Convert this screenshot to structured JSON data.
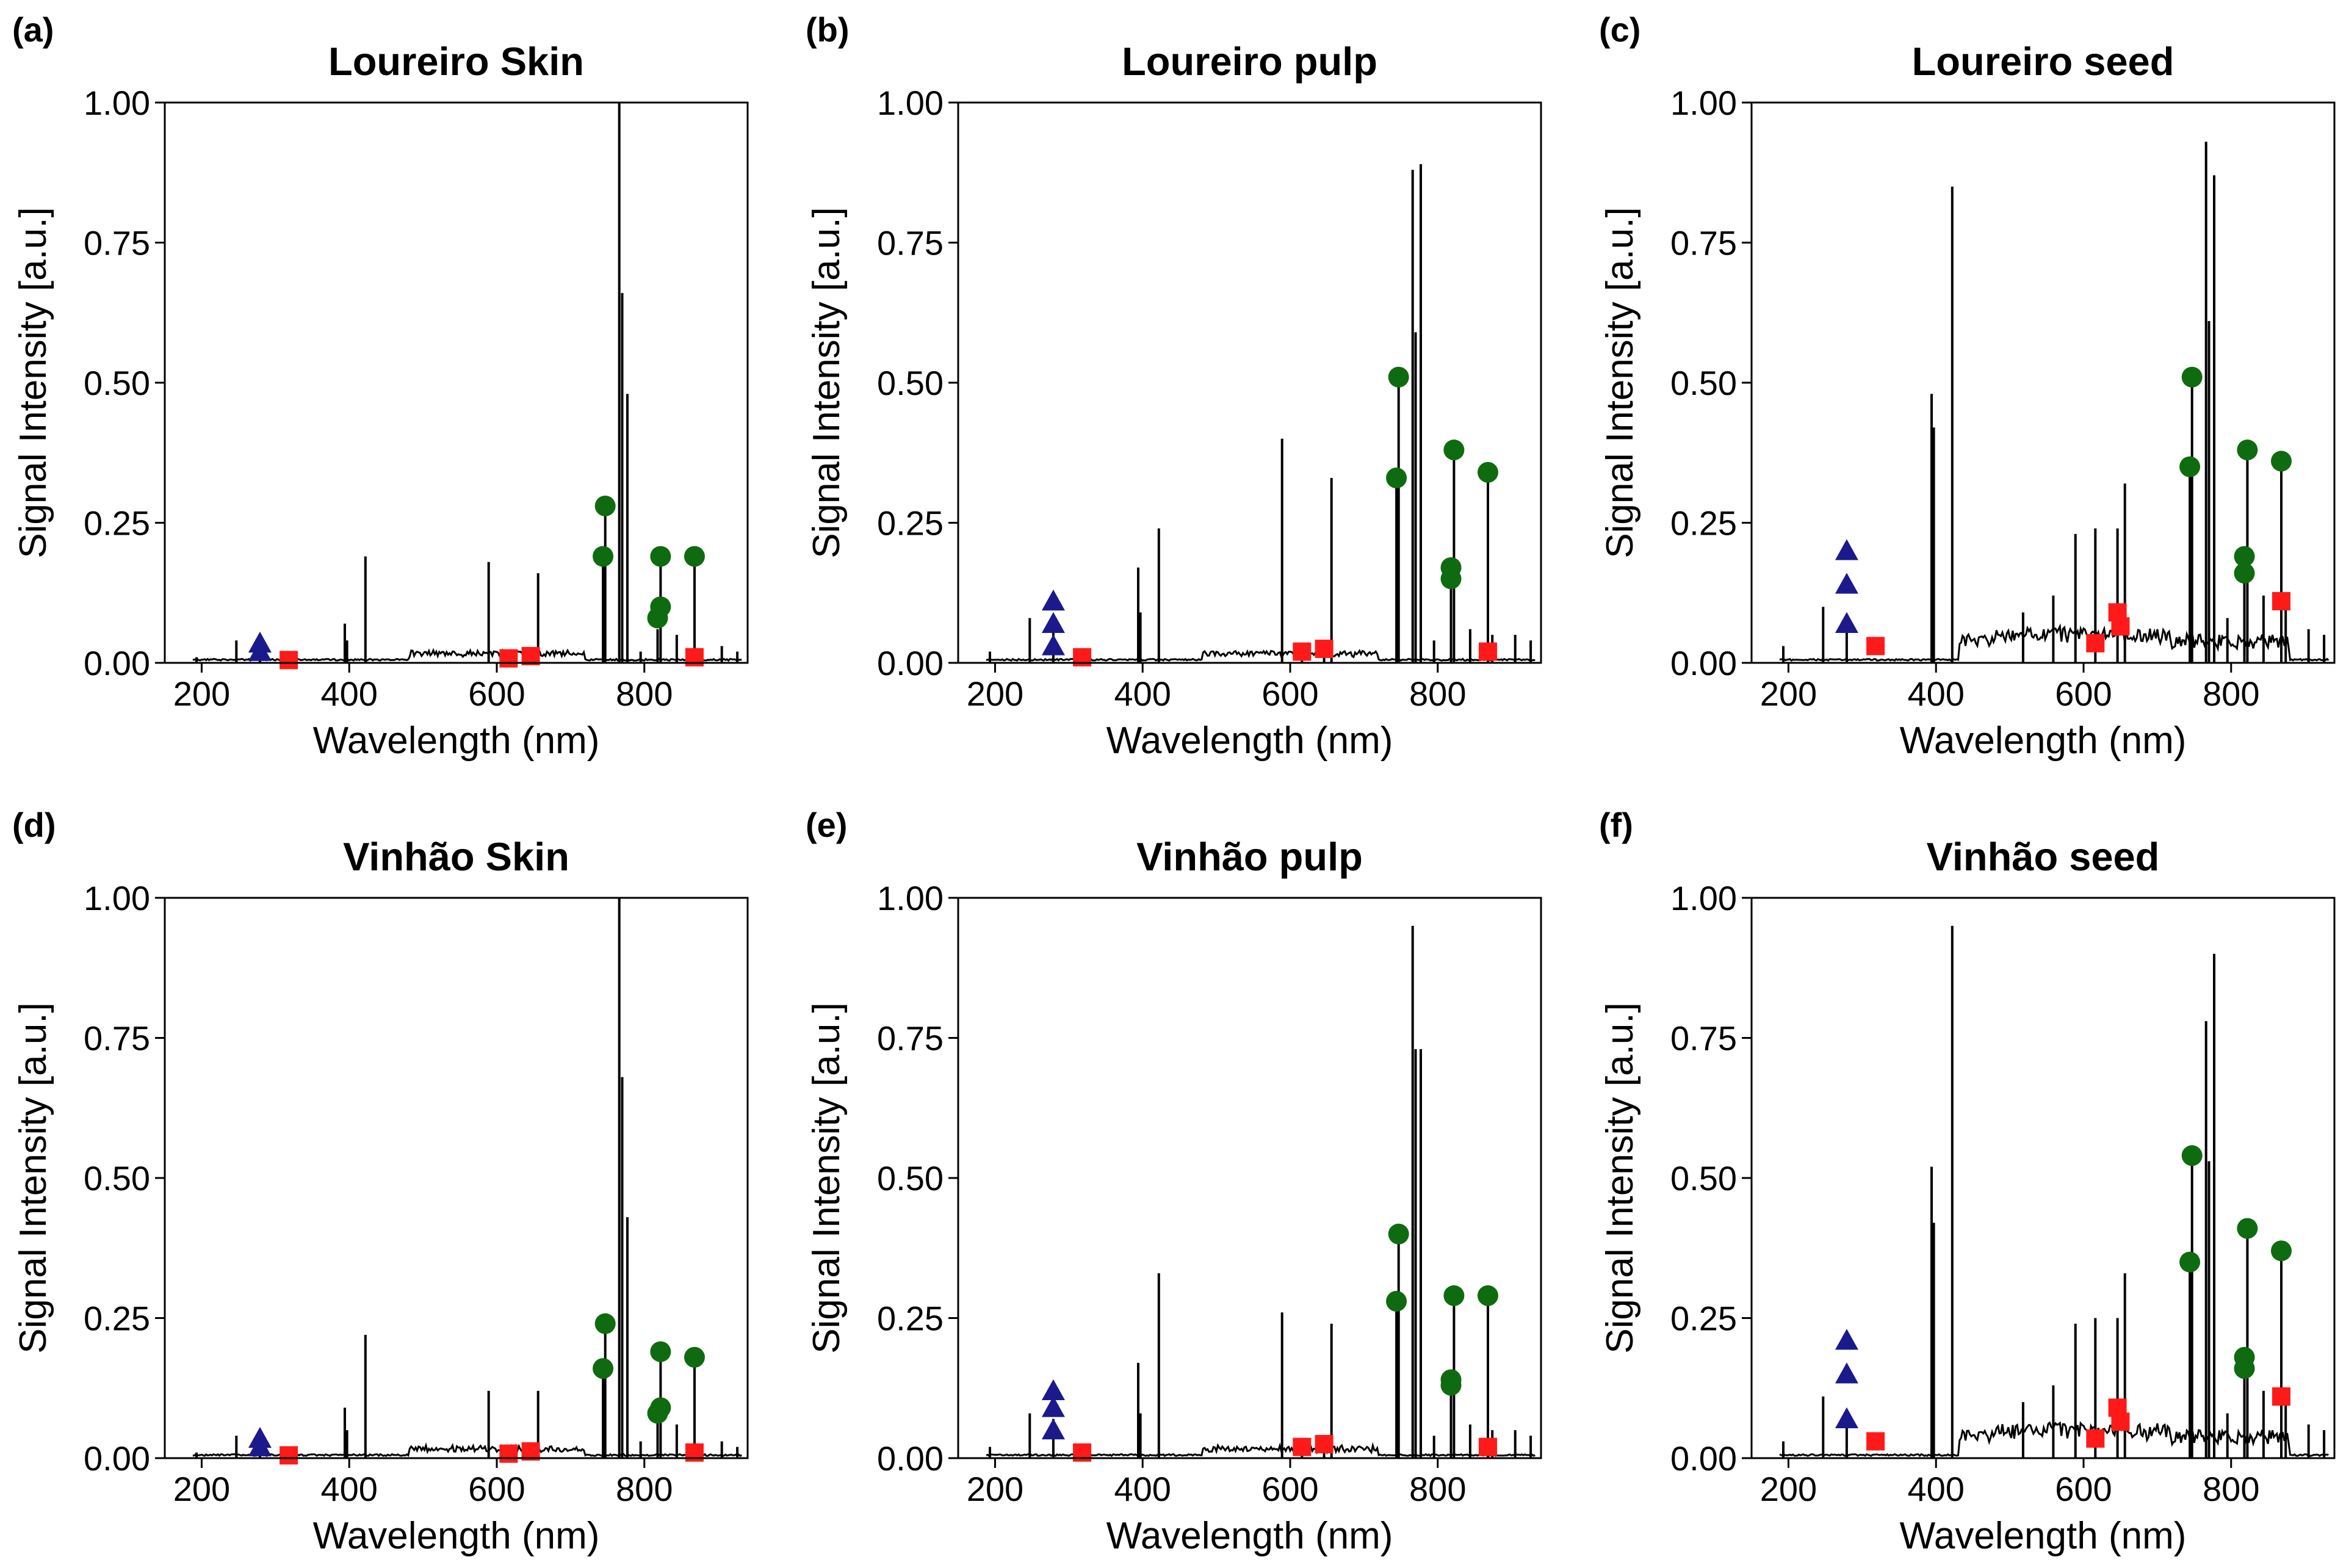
{
  "figure": {
    "x_axis_label": "Wavelength (nm)",
    "y_axis_label": "Signal Intensity [a.u.]",
    "x_ticks": [
      "200",
      "400",
      "600",
      "800"
    ],
    "y_ticks": [
      "0.00",
      "0.25",
      "0.50",
      "0.75",
      "1.00"
    ]
  },
  "marker_colors": {
    "triangle": "#1a1a8c",
    "square": "#ff1a1a",
    "circle": "#0f6b0f",
    "spectrum": "#000000"
  },
  "chart_data": [
    {
      "panel": "(a)",
      "title": "Loureiro Skin",
      "type": "line",
      "xlabel": "Wavelength (nm)",
      "ylabel": "Signal Intensity [a.u.]",
      "xlim": [
        150,
        940
      ],
      "ylim": [
        0,
        1
      ],
      "peaks": [
        [
          193,
          0.01
        ],
        [
          247,
          0.04
        ],
        [
          279,
          0.02
        ],
        [
          394,
          0.07
        ],
        [
          397,
          0.04
        ],
        [
          422,
          0.19
        ],
        [
          589,
          0.18
        ],
        [
          616,
          0.01
        ],
        [
          646,
          0.01
        ],
        [
          656,
          0.16
        ],
        [
          744,
          0.19
        ],
        [
          747,
          0.28
        ],
        [
          766,
          1.0
        ],
        [
          770,
          0.66
        ],
        [
          777,
          0.48
        ],
        [
          795,
          0.02
        ],
        [
          818,
          0.06
        ],
        [
          822,
          0.19
        ],
        [
          844,
          0.05
        ],
        [
          868,
          0.19
        ],
        [
          874,
          0.02
        ],
        [
          905,
          0.03
        ],
        [
          926,
          0.02
        ]
      ],
      "triangles": [
        [
          279,
          0.02
        ],
        [
          279,
          0.035
        ]
      ],
      "squares": [
        [
          318,
          0.005
        ],
        [
          616,
          0.008
        ],
        [
          646,
          0.012
        ],
        [
          868,
          0.01
        ]
      ],
      "circles": [
        [
          744,
          0.19
        ],
        [
          747,
          0.28
        ],
        [
          818,
          0.08
        ],
        [
          822,
          0.1
        ],
        [
          822,
          0.19
        ],
        [
          868,
          0.19
        ]
      ]
    },
    {
      "panel": "(b)",
      "title": "Loureiro pulp",
      "type": "line",
      "xlabel": "Wavelength (nm)",
      "ylabel": "Signal Intensity [a.u.]",
      "xlim": [
        150,
        940
      ],
      "ylim": [
        0,
        1
      ],
      "peaks": [
        [
          193,
          0.02
        ],
        [
          247,
          0.08
        ],
        [
          279,
          0.07
        ],
        [
          394,
          0.17
        ],
        [
          397,
          0.09
        ],
        [
          422,
          0.24
        ],
        [
          589,
          0.4
        ],
        [
          616,
          0.03
        ],
        [
          646,
          0.03
        ],
        [
          656,
          0.33
        ],
        [
          744,
          0.33
        ],
        [
          747,
          0.51
        ],
        [
          766,
          0.88
        ],
        [
          770,
          0.59
        ],
        [
          777,
          0.89
        ],
        [
          795,
          0.04
        ],
        [
          818,
          0.15
        ],
        [
          822,
          0.38
        ],
        [
          844,
          0.06
        ],
        [
          868,
          0.34
        ],
        [
          874,
          0.05
        ],
        [
          905,
          0.05
        ],
        [
          926,
          0.04
        ]
      ],
      "triangles": [
        [
          279,
          0.03
        ],
        [
          279,
          0.07
        ],
        [
          279,
          0.11
        ]
      ],
      "squares": [
        [
          318,
          0.01
        ],
        [
          616,
          0.02
        ],
        [
          646,
          0.025
        ],
        [
          868,
          0.02
        ]
      ],
      "circles": [
        [
          744,
          0.33
        ],
        [
          747,
          0.51
        ],
        [
          818,
          0.15
        ],
        [
          818,
          0.17
        ],
        [
          822,
          0.38
        ],
        [
          868,
          0.34
        ]
      ]
    },
    {
      "panel": "(c)",
      "title": "Loureiro seed",
      "type": "line",
      "xlabel": "Wavelength (nm)",
      "ylabel": "Signal Intensity [a.u.]",
      "xlim": [
        150,
        940
      ],
      "ylim": [
        0,
        1
      ],
      "peaks": [
        [
          193,
          0.03
        ],
        [
          247,
          0.1
        ],
        [
          279,
          0.07
        ],
        [
          394,
          0.48
        ],
        [
          397,
          0.42
        ],
        [
          422,
          0.85
        ],
        [
          518,
          0.09
        ],
        [
          559,
          0.12
        ],
        [
          589,
          0.23
        ],
        [
          616,
          0.24
        ],
        [
          646,
          0.24
        ],
        [
          656,
          0.32
        ],
        [
          744,
          0.35
        ],
        [
          747,
          0.51
        ],
        [
          766,
          0.93
        ],
        [
          770,
          0.61
        ],
        [
          777,
          0.87
        ],
        [
          795,
          0.08
        ],
        [
          818,
          0.16
        ],
        [
          822,
          0.38
        ],
        [
          844,
          0.12
        ],
        [
          868,
          0.36
        ],
        [
          874,
          0.1
        ],
        [
          905,
          0.06
        ],
        [
          926,
          0.05
        ]
      ],
      "triangles": [
        [
          279,
          0.07
        ],
        [
          279,
          0.14
        ],
        [
          279,
          0.2
        ]
      ],
      "squares": [
        [
          318,
          0.03
        ],
        [
          616,
          0.035
        ],
        [
          646,
          0.09
        ],
        [
          650,
          0.065
        ],
        [
          868,
          0.11
        ]
      ],
      "circles": [
        [
          744,
          0.35
        ],
        [
          747,
          0.51
        ],
        [
          818,
          0.16
        ],
        [
          818,
          0.19
        ],
        [
          822,
          0.38
        ],
        [
          868,
          0.36
        ]
      ]
    },
    {
      "panel": "(d)",
      "title": "Vinhão Skin",
      "type": "line",
      "xlabel": "Wavelength (nm)",
      "ylabel": "Signal Intensity [a.u.]",
      "xlim": [
        150,
        940
      ],
      "ylim": [
        0,
        1
      ],
      "peaks": [
        [
          193,
          0.01
        ],
        [
          247,
          0.04
        ],
        [
          279,
          0.02
        ],
        [
          394,
          0.09
        ],
        [
          397,
          0.05
        ],
        [
          422,
          0.22
        ],
        [
          589,
          0.12
        ],
        [
          616,
          0.01
        ],
        [
          646,
          0.01
        ],
        [
          656,
          0.12
        ],
        [
          744,
          0.16
        ],
        [
          747,
          0.24
        ],
        [
          766,
          1.0
        ],
        [
          770,
          0.68
        ],
        [
          777,
          0.43
        ],
        [
          795,
          0.03
        ],
        [
          818,
          0.07
        ],
        [
          822,
          0.19
        ],
        [
          844,
          0.06
        ],
        [
          868,
          0.18
        ],
        [
          874,
          0.02
        ],
        [
          905,
          0.03
        ],
        [
          926,
          0.02
        ]
      ],
      "triangles": [
        [
          279,
          0.02
        ],
        [
          279,
          0.035
        ]
      ],
      "squares": [
        [
          318,
          0.005
        ],
        [
          616,
          0.008
        ],
        [
          646,
          0.012
        ],
        [
          868,
          0.01
        ]
      ],
      "circles": [
        [
          744,
          0.16
        ],
        [
          747,
          0.24
        ],
        [
          818,
          0.08
        ],
        [
          822,
          0.09
        ],
        [
          822,
          0.19
        ],
        [
          868,
          0.18
        ]
      ]
    },
    {
      "panel": "(e)",
      "title": "Vinhão pulp",
      "type": "line",
      "xlabel": "Wavelength (nm)",
      "ylabel": "Signal Intensity [a.u.]",
      "xlim": [
        150,
        940
      ],
      "ylim": [
        0,
        1
      ],
      "peaks": [
        [
          193,
          0.02
        ],
        [
          247,
          0.08
        ],
        [
          279,
          0.07
        ],
        [
          394,
          0.17
        ],
        [
          397,
          0.08
        ],
        [
          422,
          0.33
        ],
        [
          589,
          0.26
        ],
        [
          616,
          0.02
        ],
        [
          646,
          0.03
        ],
        [
          656,
          0.24
        ],
        [
          744,
          0.28
        ],
        [
          747,
          0.4
        ],
        [
          766,
          0.95
        ],
        [
          770,
          0.73
        ],
        [
          777,
          0.73
        ],
        [
          795,
          0.04
        ],
        [
          818,
          0.13
        ],
        [
          822,
          0.29
        ],
        [
          844,
          0.06
        ],
        [
          868,
          0.29
        ],
        [
          874,
          0.05
        ],
        [
          905,
          0.05
        ],
        [
          926,
          0.04
        ]
      ],
      "triangles": [
        [
          279,
          0.05
        ],
        [
          279,
          0.09
        ],
        [
          279,
          0.12
        ]
      ],
      "squares": [
        [
          318,
          0.01
        ],
        [
          616,
          0.02
        ],
        [
          646,
          0.025
        ],
        [
          868,
          0.02
        ]
      ],
      "circles": [
        [
          744,
          0.28
        ],
        [
          747,
          0.4
        ],
        [
          818,
          0.13
        ],
        [
          818,
          0.14
        ],
        [
          822,
          0.29
        ],
        [
          868,
          0.29
        ]
      ]
    },
    {
      "panel": "(f)",
      "title": "Vinhão seed",
      "type": "line",
      "xlabel": "Wavelength (nm)",
      "ylabel": "Signal Intensity [a.u.]",
      "xlim": [
        150,
        940
      ],
      "ylim": [
        0,
        1
      ],
      "peaks": [
        [
          193,
          0.03
        ],
        [
          247,
          0.11
        ],
        [
          279,
          0.07
        ],
        [
          394,
          0.52
        ],
        [
          397,
          0.42
        ],
        [
          422,
          0.95
        ],
        [
          518,
          0.1
        ],
        [
          559,
          0.13
        ],
        [
          589,
          0.24
        ],
        [
          616,
          0.25
        ],
        [
          646,
          0.25
        ],
        [
          656,
          0.33
        ],
        [
          744,
          0.35
        ],
        [
          747,
          0.54
        ],
        [
          766,
          0.78
        ],
        [
          770,
          0.53
        ],
        [
          777,
          0.9
        ],
        [
          795,
          0.08
        ],
        [
          818,
          0.16
        ],
        [
          822,
          0.41
        ],
        [
          844,
          0.12
        ],
        [
          868,
          0.37
        ],
        [
          874,
          0.1
        ],
        [
          905,
          0.06
        ],
        [
          926,
          0.05
        ]
      ],
      "triangles": [
        [
          279,
          0.07
        ],
        [
          279,
          0.15
        ],
        [
          279,
          0.21
        ]
      ],
      "squares": [
        [
          318,
          0.03
        ],
        [
          616,
          0.035
        ],
        [
          646,
          0.09
        ],
        [
          650,
          0.065
        ],
        [
          868,
          0.11
        ]
      ],
      "circles": [
        [
          744,
          0.35
        ],
        [
          747,
          0.54
        ],
        [
          818,
          0.16
        ],
        [
          818,
          0.18
        ],
        [
          822,
          0.41
        ],
        [
          868,
          0.37
        ]
      ]
    }
  ]
}
